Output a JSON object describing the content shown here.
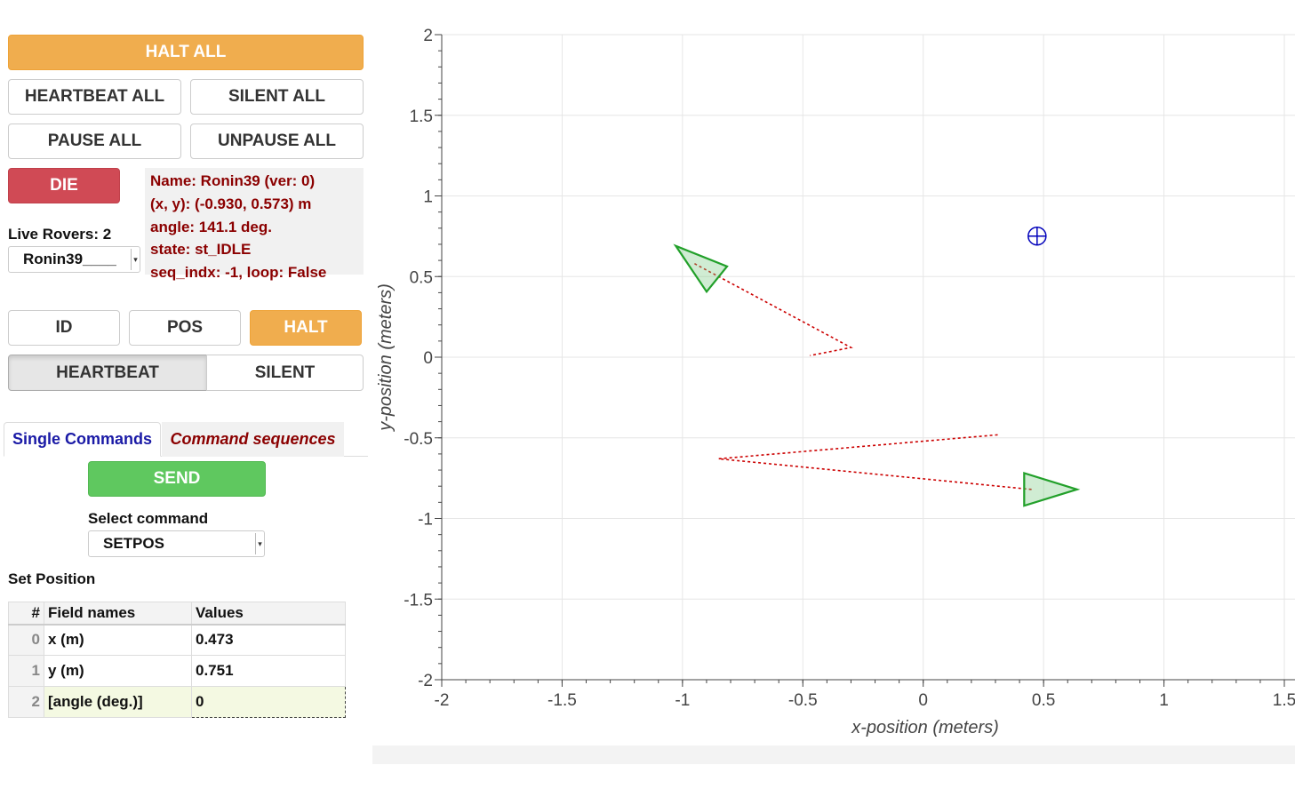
{
  "buttons": {
    "halt_all": "HALT ALL",
    "heartbeat_all": "HEARTBEAT ALL",
    "silent_all": "SILENT ALL",
    "pause_all": "PAUSE ALL",
    "unpause_all": "UNPAUSE ALL",
    "die": "DIE",
    "id": "ID",
    "pos": "POS",
    "halt": "HALT",
    "heartbeat": "HEARTBEAT",
    "silent": "SILENT",
    "send": "SEND"
  },
  "rover_info": {
    "name": "Name: Ronin39 (ver: 0)",
    "xy": "(x, y): (-0.930, 0.573) m",
    "angle": "angle: 141.1 deg.",
    "state": "state: st_IDLE",
    "seq": "seq_indx: -1, loop: False"
  },
  "live_rovers": "Live Rovers: 2",
  "rover_select": "Ronin39____",
  "tabs": {
    "single": "Single Commands",
    "sequences": "Command sequences"
  },
  "select_command_label": "Select command",
  "command_select": "SETPOS",
  "set_position_title": "Set Position",
  "grid": {
    "headers": [
      "#",
      "Field names",
      "Values"
    ],
    "rows": [
      {
        "idx": "0",
        "name": "x (m)",
        "value": "0.473"
      },
      {
        "idx": "1",
        "name": "y (m)",
        "value": "0.751"
      },
      {
        "idx": "2",
        "name": "[angle (deg.)]",
        "value": "0"
      }
    ]
  },
  "chart_data": {
    "type": "scatter",
    "xlabel": "x-position (meters)",
    "ylabel": "y-position (meters)",
    "xlim": [
      -2,
      1.5
    ],
    "ylim": [
      -2,
      2
    ],
    "x_ticks": [
      "-2",
      "-1.5",
      "-1",
      "-0.5",
      "0",
      "0.5",
      "1",
      "1.5"
    ],
    "y_ticks": [
      "-2",
      "-1.5",
      "-1",
      "-0.5",
      "0",
      "0.5",
      "1",
      "1.5",
      "2"
    ],
    "grid": true,
    "target": {
      "x": 0.473,
      "y": 0.751
    },
    "rovers": [
      {
        "x": -0.92,
        "y": 0.56,
        "angle": 141.1
      },
      {
        "x": 0.5,
        "y": -0.82,
        "angle": 0
      }
    ],
    "paths": [
      [
        [
          -0.95,
          0.58
        ],
        [
          -0.3,
          0.06
        ],
        [
          -0.47,
          0.01
        ]
      ],
      [
        [
          0.45,
          -0.82
        ],
        [
          -0.85,
          -0.63
        ],
        [
          0.32,
          -0.48
        ]
      ]
    ],
    "colors": {
      "path": "#cc0000",
      "rover": "#22a02a",
      "target": "#0000bb"
    }
  }
}
